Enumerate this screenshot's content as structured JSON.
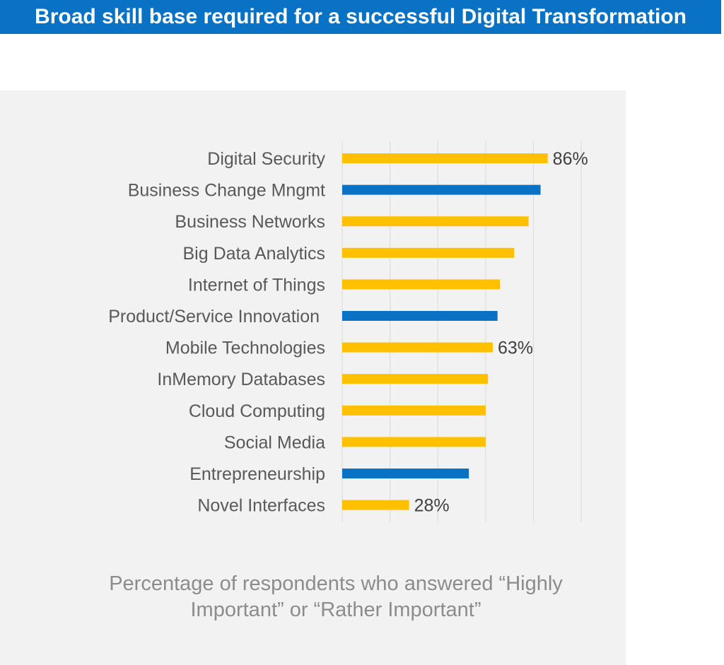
{
  "title": "Broad skill base required for a successful Digital Transformation",
  "caption_line1": "Percentage of respondents who answered “Highly",
  "caption_line2": "Important” or “Rather Important”",
  "colors": {
    "yellow": "#FFC000",
    "blue": "#0A72C4",
    "grid": "#d9d9d9"
  },
  "chart_data": {
    "type": "bar",
    "orientation": "horizontal",
    "title": "Broad skill base required for a successful Digital Transformation",
    "xlabel": "Percentage of respondents who answered “Highly Important” or “Rather Important”",
    "xlim": [
      0,
      100
    ],
    "grid": true,
    "gridlines": [
      0,
      20,
      40,
      60,
      80,
      100
    ],
    "categories": [
      "Digital Security",
      "Business Change Mngmt",
      "Business Networks",
      "Big Data Analytics",
      "Internet of Things",
      "Product/Service Innovation",
      "Mobile Technologies",
      "InMemory Databases",
      "Cloud Computing",
      "Social Media",
      "Entrepreneurship",
      "Novel Interfaces"
    ],
    "values": [
      86,
      83,
      78,
      72,
      66,
      65,
      63,
      61,
      60,
      60,
      53,
      28
    ],
    "bar_colors": [
      "yellow",
      "blue",
      "yellow",
      "yellow",
      "yellow",
      "blue",
      "yellow",
      "yellow",
      "yellow",
      "yellow",
      "blue",
      "yellow"
    ],
    "data_labels": [
      "86%",
      "",
      "",
      "",
      "",
      "",
      "63%",
      "",
      "",
      "",
      "",
      "28%"
    ]
  }
}
